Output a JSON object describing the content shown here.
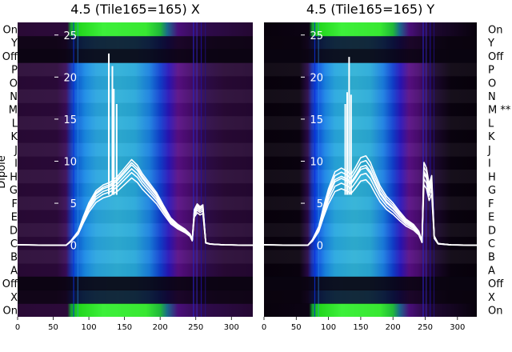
{
  "chart_data": [
    {
      "type": "heatmap",
      "title": "4.5 (Tile165=165) X",
      "ylabel": "Dipole",
      "y_categories": [
        "On",
        "X",
        "Off",
        "A",
        "B",
        "C",
        "D",
        "E",
        "F",
        "G",
        "H",
        "I",
        "J",
        "K",
        "L",
        "M",
        "N",
        "O",
        "P",
        "Off",
        "Y",
        "On"
      ],
      "x_ticks": [
        0,
        50,
        100,
        150,
        200,
        250,
        300
      ],
      "xlim": [
        0,
        330
      ],
      "overlay_ticks": [
        0,
        5,
        10,
        15,
        20,
        25
      ],
      "overlay_ylim": [
        -8.5,
        26.5
      ],
      "band_profile": [
        [
          0,
          "#2a0a36"
        ],
        [
          55,
          "#2c0a3a"
        ],
        [
          68,
          "#3a0c5a"
        ],
        [
          74,
          "#1b2fa8"
        ],
        [
          80,
          "#0a55d8"
        ],
        [
          95,
          "#1a8ce6"
        ],
        [
          110,
          "#2aa5e0"
        ],
        [
          140,
          "#2fb0d8"
        ],
        [
          165,
          "#28a8da"
        ],
        [
          185,
          "#1a80e0"
        ],
        [
          200,
          "#1040d0"
        ],
        [
          212,
          "#2a14b8"
        ],
        [
          225,
          "#5a0f86"
        ],
        [
          240,
          "#4a0c70"
        ],
        [
          262,
          "#2f0b4c"
        ],
        [
          290,
          "#2a0a36"
        ],
        [
          330,
          "#240832"
        ]
      ],
      "on_profile": [
        [
          0,
          "#2a0a36"
        ],
        [
          70,
          "#2c0a3a"
        ],
        [
          75,
          "#12a032"
        ],
        [
          85,
          "#22d61c"
        ],
        [
          120,
          "#3df03a"
        ],
        [
          180,
          "#38e832"
        ],
        [
          200,
          "#20b83a"
        ],
        [
          210,
          "#1a6a8a"
        ],
        [
          225,
          "#4a0f7a"
        ],
        [
          260,
          "#2f0b4c"
        ],
        [
          330,
          "#240832"
        ]
      ],
      "series_shape": [
        [
          0,
          0.05
        ],
        [
          60,
          0
        ],
        [
          68,
          0
        ],
        [
          75,
          0.5
        ],
        [
          85,
          1.5
        ],
        [
          92,
          3
        ],
        [
          100,
          4.5
        ],
        [
          110,
          5.8
        ],
        [
          120,
          6.4
        ],
        [
          130,
          6.7
        ],
        [
          140,
          7.3
        ],
        [
          150,
          8.2
        ],
        [
          160,
          9.1
        ],
        [
          168,
          8.5
        ],
        [
          175,
          7.6
        ],
        [
          185,
          6.6
        ],
        [
          195,
          5.6
        ],
        [
          205,
          4.2
        ],
        [
          215,
          2.9
        ],
        [
          225,
          2.2
        ],
        [
          235,
          1.7
        ],
        [
          242,
          1.2
        ],
        [
          245,
          0.6
        ],
        [
          248,
          3.8
        ],
        [
          252,
          4.4
        ],
        [
          256,
          4.1
        ],
        [
          260,
          4.3
        ],
        [
          264,
          0.3
        ],
        [
          270,
          0.15
        ],
        [
          290,
          0.05
        ],
        [
          330,
          0
        ]
      ],
      "series_scales": [
        0.88,
        0.95,
        1.0,
        1.05,
        1.08,
        1.12
      ],
      "spikes": [
        [
          128,
          22.8
        ],
        [
          133,
          21.3
        ],
        [
          135,
          18.6
        ],
        [
          139,
          16.8
        ]
      ]
    },
    {
      "type": "heatmap",
      "title": "4.5 (Tile165=165) Y",
      "ylabel": "",
      "y_categories": [
        "On",
        "X",
        "Off",
        "A",
        "B",
        "C",
        "D",
        "E",
        "F",
        "G",
        "H",
        "I",
        "J",
        "K",
        "L",
        "M **",
        "N",
        "O",
        "P",
        "Off",
        "Y",
        "On"
      ],
      "x_ticks": [
        0,
        50,
        100,
        150,
        200,
        250,
        300
      ],
      "xlim": [
        0,
        330
      ],
      "overlay_ticks": [
        0,
        5,
        10,
        15,
        20,
        25
      ],
      "overlay_ylim": [
        -8.5,
        26.5
      ],
      "band_profile": [
        [
          0,
          "#08020c"
        ],
        [
          55,
          "#0a030f"
        ],
        [
          68,
          "#2a0a4a"
        ],
        [
          74,
          "#1830b0"
        ],
        [
          80,
          "#0a44e0"
        ],
        [
          95,
          "#1a86e6"
        ],
        [
          110,
          "#28a8e0"
        ],
        [
          140,
          "#30b2d6"
        ],
        [
          165,
          "#2aaad8"
        ],
        [
          185,
          "#1a7ee2"
        ],
        [
          200,
          "#1040d0"
        ],
        [
          212,
          "#2a14b8"
        ],
        [
          225,
          "#5a0f86"
        ],
        [
          240,
          "#4a0c70"
        ],
        [
          262,
          "#1e0832"
        ],
        [
          290,
          "#0a030f"
        ],
        [
          330,
          "#08020c"
        ]
      ],
      "on_profile": [
        [
          0,
          "#08020c"
        ],
        [
          70,
          "#0c0314"
        ],
        [
          75,
          "#12a032"
        ],
        [
          85,
          "#22d61c"
        ],
        [
          120,
          "#3df03a"
        ],
        [
          180,
          "#38e832"
        ],
        [
          200,
          "#20b83a"
        ],
        [
          210,
          "#1a6a8a"
        ],
        [
          225,
          "#4a0f7a"
        ],
        [
          260,
          "#1e0832"
        ],
        [
          330,
          "#08020c"
        ]
      ],
      "series_shape": [
        [
          0,
          0.05
        ],
        [
          60,
          0
        ],
        [
          68,
          0
        ],
        [
          75,
          0.6
        ],
        [
          85,
          2
        ],
        [
          92,
          4
        ],
        [
          100,
          6
        ],
        [
          110,
          7.8
        ],
        [
          120,
          8.2
        ],
        [
          128,
          7.9
        ],
        [
          135,
          7.5
        ],
        [
          142,
          8.3
        ],
        [
          150,
          9.3
        ],
        [
          158,
          9.5
        ],
        [
          165,
          8.8
        ],
        [
          172,
          7.6
        ],
        [
          180,
          6.3
        ],
        [
          190,
          5.2
        ],
        [
          200,
          4.5
        ],
        [
          210,
          3.6
        ],
        [
          220,
          2.8
        ],
        [
          232,
          2.2
        ],
        [
          240,
          1.5
        ],
        [
          245,
          0.4
        ],
        [
          248,
          8.8
        ],
        [
          252,
          8.2
        ],
        [
          256,
          6.5
        ],
        [
          260,
          7.4
        ],
        [
          264,
          1
        ],
        [
          270,
          0.2
        ],
        [
          290,
          0.05
        ],
        [
          330,
          0
        ]
      ],
      "series_scales": [
        0.82,
        0.9,
        0.97,
        1.0,
        1.06,
        1.12
      ],
      "spikes": [
        [
          126,
          16.8
        ],
        [
          129,
          18.2
        ],
        [
          132,
          22.4
        ],
        [
          135,
          17.9
        ]
      ]
    }
  ]
}
